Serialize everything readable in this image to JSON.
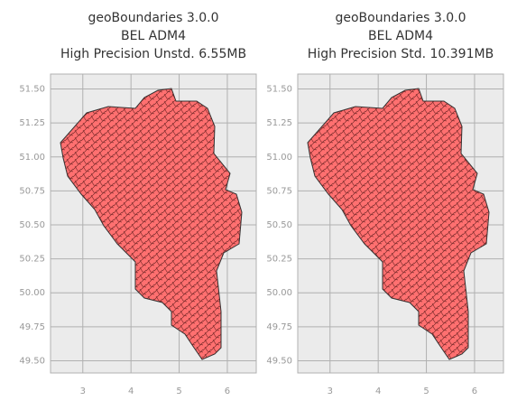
{
  "chart_data": [
    {
      "type": "map",
      "title": [
        "geoBoundaries 3.0.0",
        "BEL ADM4",
        "High Precision Unstd. 6.55MB"
      ],
      "xlim": [
        2.33,
        6.6
      ],
      "ylim": [
        49.41,
        51.61
      ],
      "xticks": [
        3,
        4,
        5,
        6
      ],
      "yticks": [
        {
          "value": 49.5,
          "label": "49.50"
        },
        {
          "value": 49.75,
          "label": "49.75"
        },
        {
          "value": 50,
          "label": "50.00"
        },
        {
          "value": 50.25,
          "label": "50.25"
        },
        {
          "value": 50.5,
          "label": "50.50"
        },
        {
          "value": 50.75,
          "label": "50.75"
        },
        {
          "value": 51,
          "label": "51.00"
        },
        {
          "value": 51.25,
          "label": "51.25"
        },
        {
          "value": 51.5,
          "label": "51.50"
        }
      ],
      "grid": true,
      "color": "#ff7070"
    },
    {
      "type": "map",
      "title": [
        "geoBoundaries 3.0.0",
        "BEL ADM4",
        "High Precision Std. 10.391MB"
      ],
      "xlim": [
        2.33,
        6.6
      ],
      "ylim": [
        49.41,
        51.61
      ],
      "xticks": [
        3,
        4,
        5,
        6
      ],
      "yticks": [
        {
          "value": 49.5,
          "label": "49.50"
        },
        {
          "value": 49.75,
          "label": "49.75"
        },
        {
          "value": 50,
          "label": "50.00"
        },
        {
          "value": 50.25,
          "label": "50.25"
        },
        {
          "value": 50.5,
          "label": "50.50"
        },
        {
          "value": 50.75,
          "label": "50.75"
        },
        {
          "value": 51,
          "label": "51.00"
        },
        {
          "value": 51.25,
          "label": "51.25"
        },
        {
          "value": 51.5,
          "label": "51.50"
        }
      ],
      "grid": true,
      "color": "#ff7070"
    }
  ]
}
